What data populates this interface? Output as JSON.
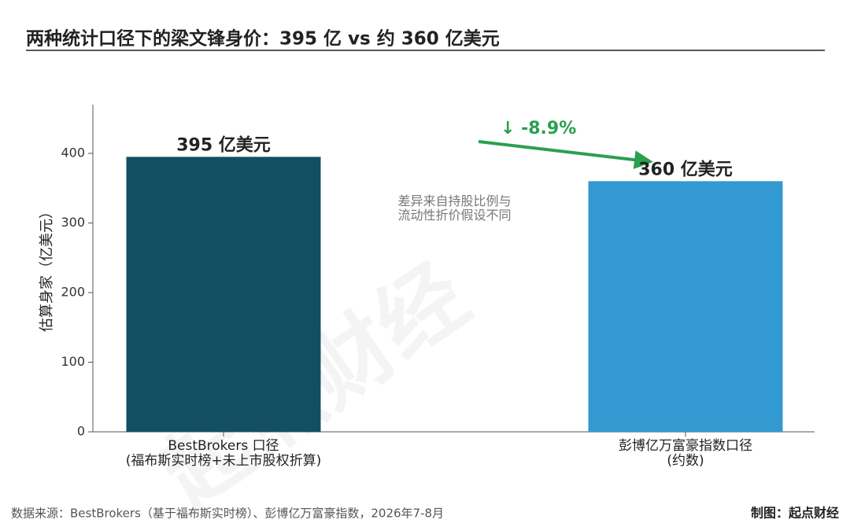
{
  "chart_data": {
    "type": "bar",
    "title": "两种统计口径下的梁文锋身价：395 亿 vs 约 360 亿美元",
    "categories": [
      "BestBrokers 口径\n(福布斯实时榜+未上市股权折算)",
      "彭博亿万富豪指数口径\n(约数)"
    ],
    "values": [
      395,
      360
    ],
    "value_labels": [
      "395 亿美元",
      "360 亿美元"
    ],
    "colors": [
      "#134f63",
      "#3399d1"
    ],
    "ylabel": "估算身家（亿美元）",
    "ylim": [
      0,
      470
    ],
    "yticks": [
      0,
      100,
      200,
      300,
      400
    ],
    "change_label": "↓ -8.9%",
    "note": "差异来自持股比例与\n流动性折价假设不同",
    "source": "数据来源：BestBrokers（基于福布斯实时榜）、彭博亿万富豪指数，2026年7-8月",
    "credit": "制图：起点财经",
    "watermark": "起点财经"
  }
}
